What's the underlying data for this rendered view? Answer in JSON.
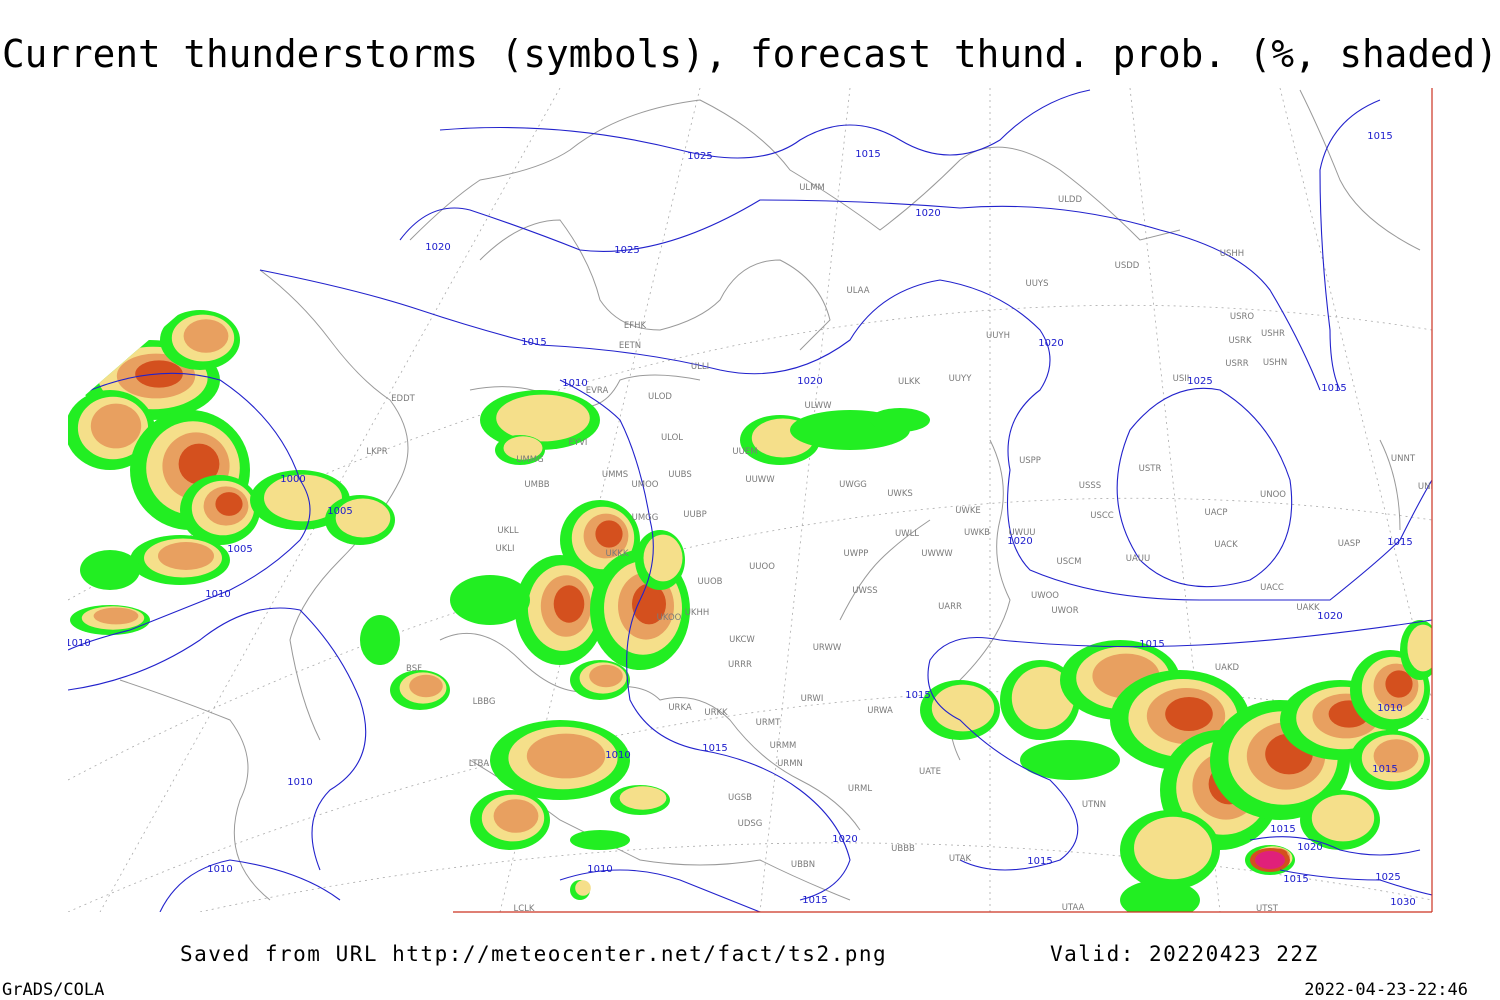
{
  "header": {
    "title": "Current thunderstorms (symbols), forecast thund. prob. (%, shaded)"
  },
  "footer": {
    "saved": "Saved from URL http://meteocenter.net/fact/ts2.png",
    "valid": "Valid: 20220423 22Z",
    "software": "GrADS/COLA",
    "timestamp": "2022-04-23-22:46"
  },
  "isobar_labels": [
    "1025",
    "1015",
    "1020",
    "1020",
    "1025",
    "1015",
    "1010",
    "1020",
    "1020",
    "1025",
    "1015",
    "1015",
    "1000",
    "1005",
    "1005",
    "1010",
    "1010",
    "1015",
    "1020",
    "1015",
    "1020",
    "1015",
    "1015",
    "1010",
    "1010",
    "1020",
    "1010",
    "1010",
    "1015",
    "1015",
    "1010",
    "1015",
    "1015",
    "1020",
    "1015",
    "1025",
    "1030"
  ],
  "stations": [
    "ULMM",
    "ULDD",
    "UUYS",
    "USDD",
    "USHH",
    "ULAA",
    "EFHK",
    "EETN",
    "ULLI",
    "UUYH",
    "USRO",
    "USRK",
    "USHR",
    "USRR",
    "USHN",
    "ULKK",
    "UUYY",
    "USII",
    "EVRA",
    "ULOD",
    "ULWW",
    "EYVI",
    "ULOL",
    "UUEM",
    "UMMG",
    "UMMS",
    "UUBS",
    "UMOO",
    "UUWW",
    "UWGG",
    "UWKS",
    "USPP",
    "USTR",
    "USSS",
    "UMBB",
    "UUBP",
    "UMGG",
    "UWKE",
    "USCC",
    "UACP",
    "UNOO",
    "UNNT",
    "UNBB",
    "UKLL",
    "UKLI",
    "UWLL",
    "UWKB",
    "UWUU",
    "UACK",
    "UASP",
    "UKKK",
    "UWPP",
    "UWWW",
    "USCM",
    "UAUU",
    "UUOO",
    "UUOB",
    "UWSS",
    "UACC",
    "UARR",
    "UWOO",
    "UWOR",
    "UAKK",
    "UKHH",
    "UKOO",
    "UKCW",
    "URWW",
    "UAKD",
    "URRR",
    "LBBG",
    "BSF",
    "URWI",
    "URKA",
    "URKK",
    "URMT",
    "URWA",
    "URMM",
    "UATE",
    "URMN",
    "URML",
    "UTNN",
    "UGSB",
    "UDSG",
    "UBBB",
    "UTAK",
    "UBBN",
    "UTAA",
    "UTST",
    "LTBA",
    "LCLK",
    "LKPR",
    "EDDT"
  ]
}
